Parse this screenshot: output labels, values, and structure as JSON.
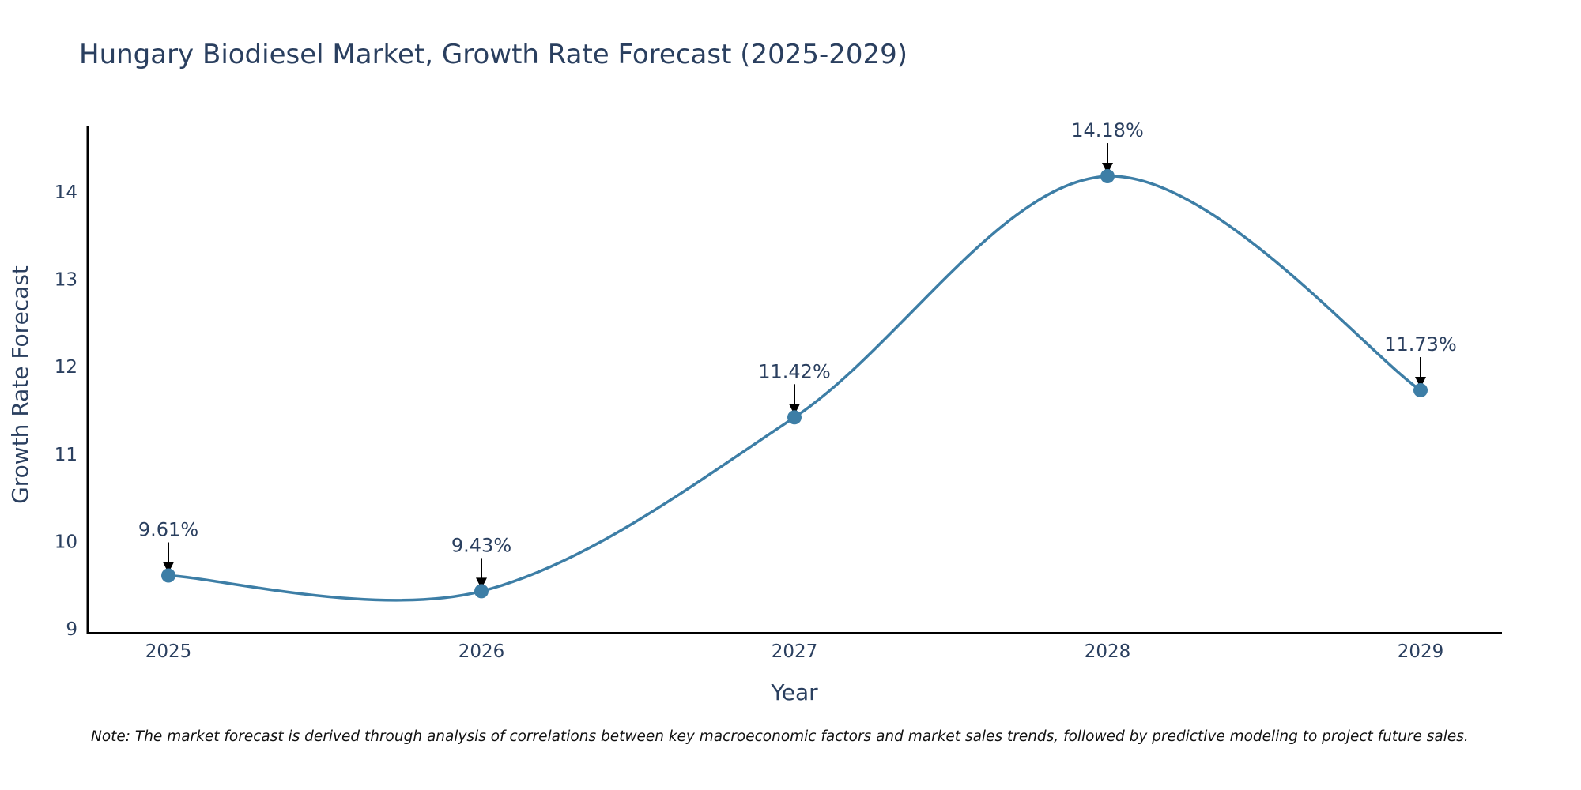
{
  "chart_data": {
    "type": "line",
    "title": "Hungary Biodiesel Market, Growth Rate Forecast (2025-2029)",
    "xlabel": "Year",
    "ylabel": "Growth Rate Forecast",
    "categories": [
      "2025",
      "2026",
      "2027",
      "2028",
      "2029"
    ],
    "series": [
      {
        "name": "Growth Rate Forecast",
        "values": [
          9.61,
          9.43,
          11.42,
          14.18,
          11.73
        ],
        "labels": [
          "9.61%",
          "9.43%",
          "11.42%",
          "14.18%",
          "11.73%"
        ],
        "color": "#3d7ea6"
      }
    ],
    "yticks": [
      9,
      10,
      11,
      12,
      13,
      14
    ],
    "ylim": [
      8.95,
      14.75
    ],
    "grid": false,
    "line_shape": "spline",
    "note": "Note: The market forecast is derived through analysis of correlations between key macroeconomic factors and market sales trends, followed by predictive modeling to project future sales."
  }
}
